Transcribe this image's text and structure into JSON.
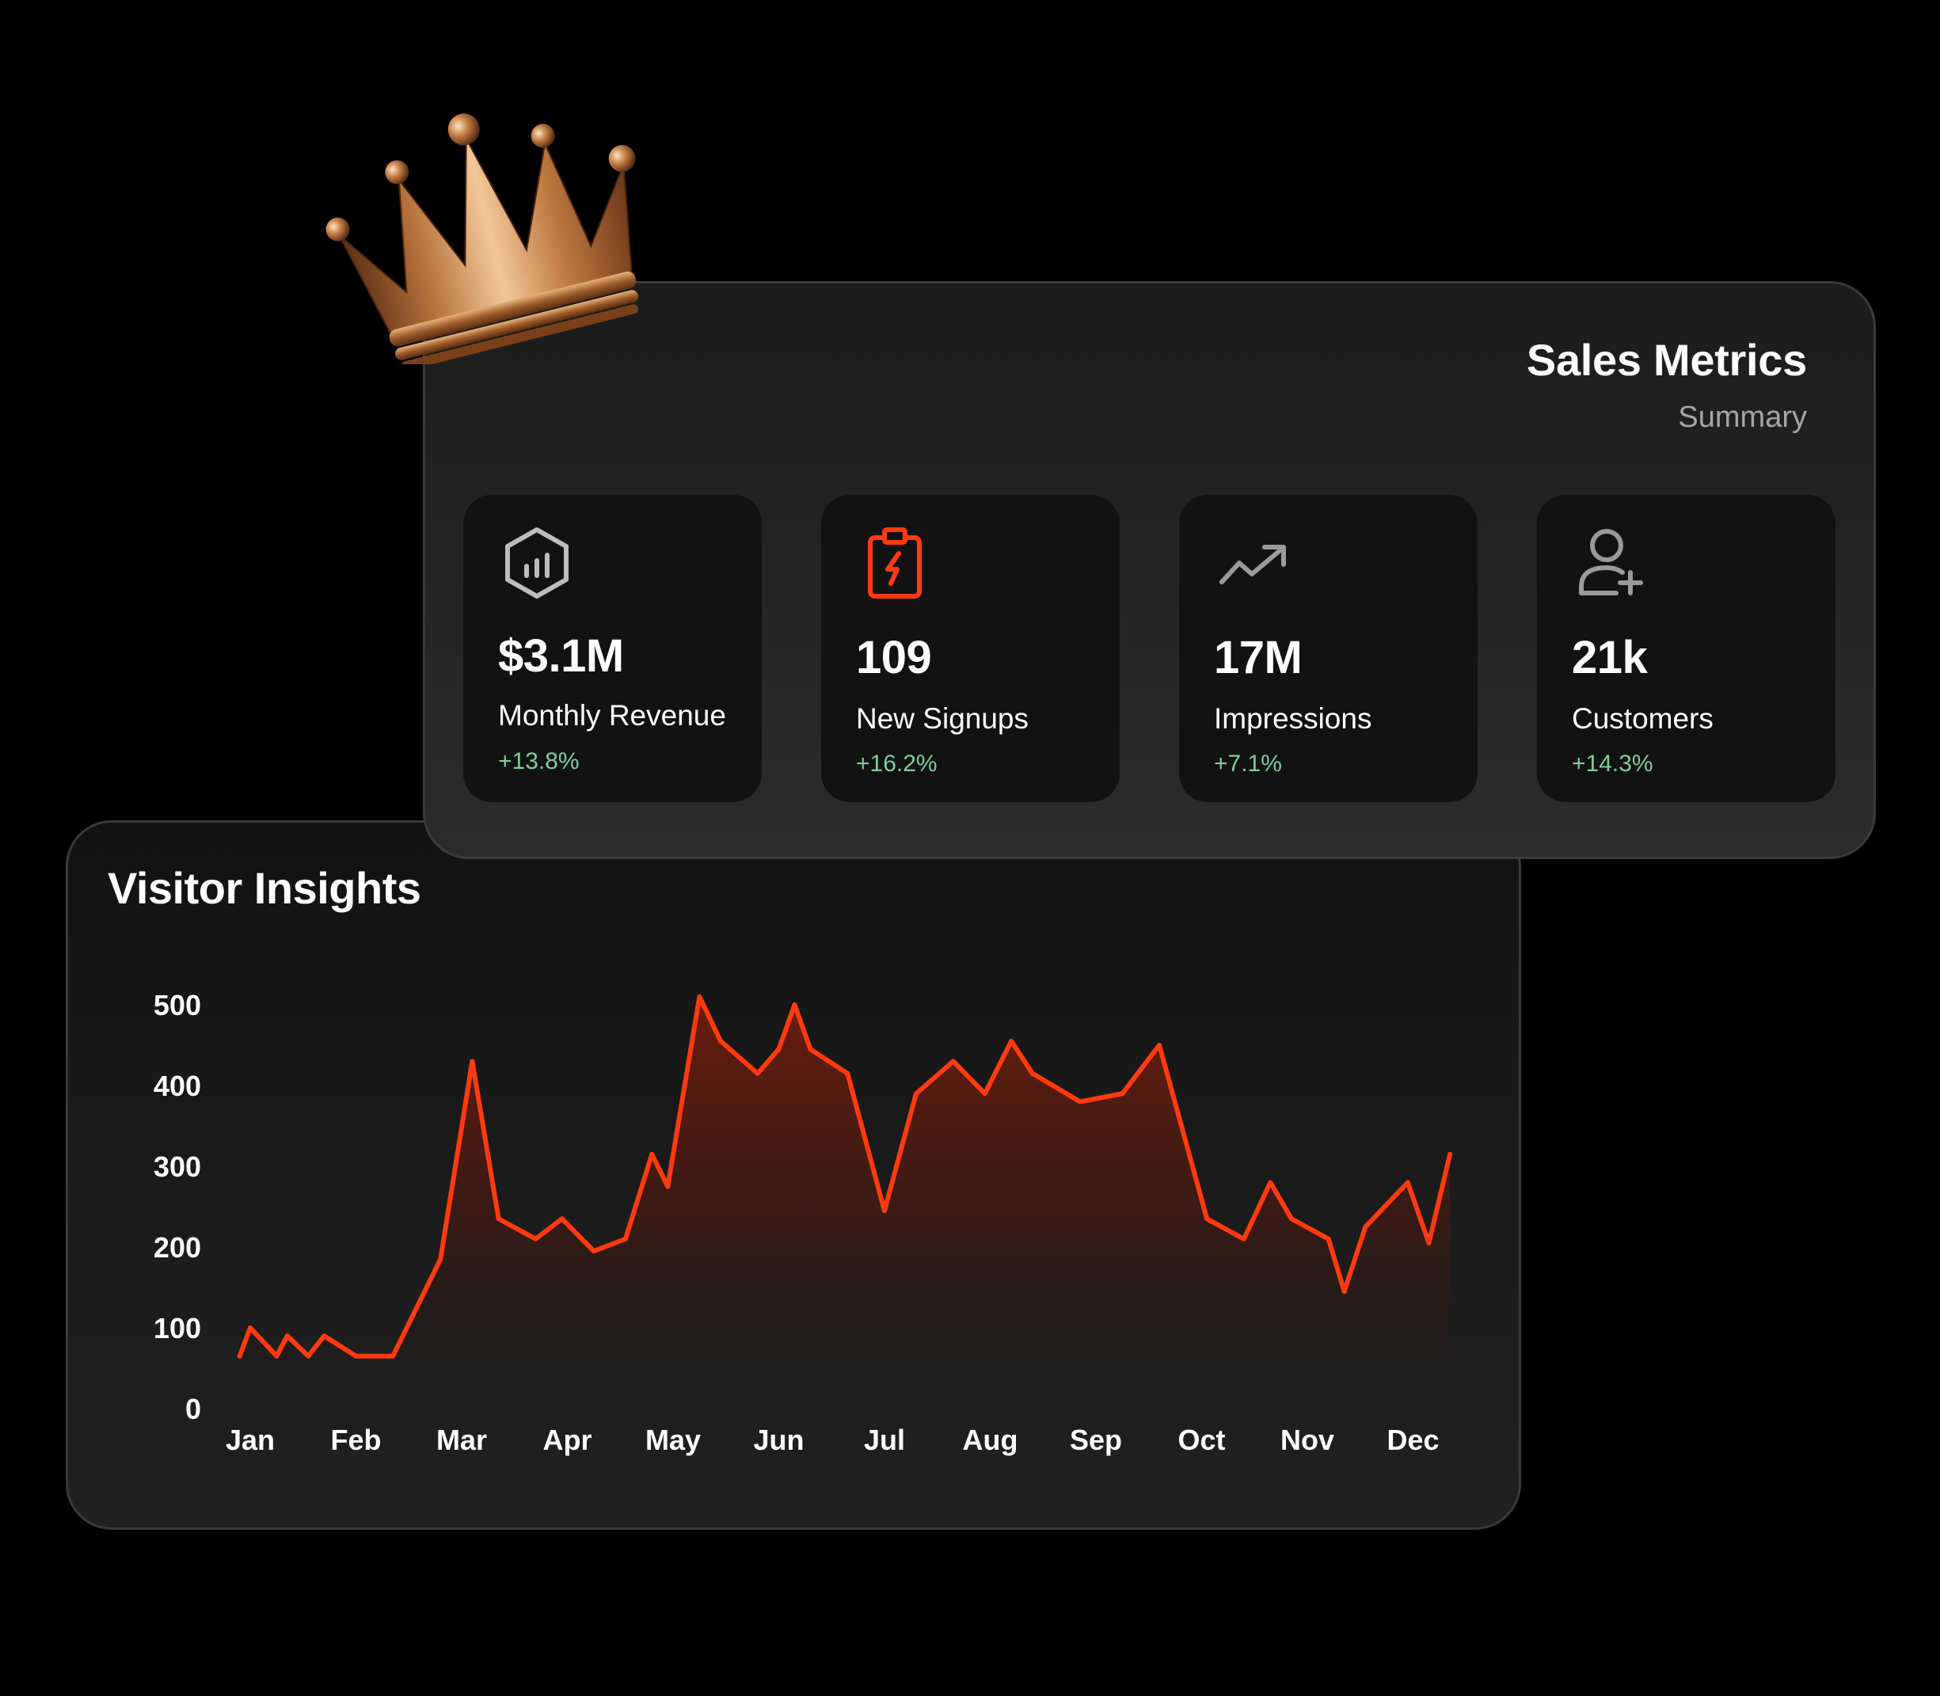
{
  "sales_metrics": {
    "title": "Sales Metrics",
    "subtitle": "Summary",
    "cards": [
      {
        "icon": "hexagon-bar-chart-icon",
        "value": "$3.1M",
        "label": "Monthly Revenue",
        "change": "+13.8%"
      },
      {
        "icon": "clipboard-lightning-icon",
        "value": "109",
        "label": "New Signups",
        "change": "+16.2%"
      },
      {
        "icon": "trending-up-icon",
        "value": "17M",
        "label": "Impressions",
        "change": "+7.1%"
      },
      {
        "icon": "user-plus-icon",
        "value": "21k",
        "label": "Customers",
        "change": "+14.3%"
      }
    ]
  },
  "visitor_insights": {
    "title": "Visitor Insights"
  },
  "colors": {
    "accent": "#ff3a0f",
    "change_positive": "#7ccf9c",
    "crown_gold": "#c98a4b"
  },
  "chart_data": {
    "type": "area",
    "title": "Visitor Insights",
    "xlabel": "",
    "ylabel": "",
    "ylim": [
      0,
      500
    ],
    "yticks": [
      "0",
      "100",
      "200",
      "300",
      "400",
      "500"
    ],
    "xticks": [
      "Jan",
      "Feb",
      "Mar",
      "Apr",
      "May",
      "Jun",
      "Jul",
      "Aug",
      "Sep",
      "Oct",
      "Nov",
      "Dec"
    ],
    "grid": false,
    "legend": "none",
    "series": [
      {
        "color": "#ff3a0f",
        "points": [
          [
            -0.1,
            65
          ],
          [
            0.0,
            100
          ],
          [
            0.25,
            65
          ],
          [
            0.35,
            90
          ],
          [
            0.55,
            65
          ],
          [
            0.7,
            90
          ],
          [
            1.0,
            65
          ],
          [
            1.35,
            65
          ],
          [
            1.8,
            185
          ],
          [
            2.1,
            430
          ],
          [
            2.35,
            235
          ],
          [
            2.7,
            210
          ],
          [
            2.95,
            235
          ],
          [
            3.25,
            195
          ],
          [
            3.55,
            210
          ],
          [
            3.8,
            315
          ],
          [
            3.95,
            275
          ],
          [
            4.25,
            510
          ],
          [
            4.45,
            455
          ],
          [
            4.8,
            415
          ],
          [
            5.0,
            445
          ],
          [
            5.15,
            500
          ],
          [
            5.3,
            445
          ],
          [
            5.65,
            415
          ],
          [
            6.0,
            245
          ],
          [
            6.3,
            390
          ],
          [
            6.65,
            430
          ],
          [
            6.95,
            390
          ],
          [
            7.2,
            455
          ],
          [
            7.4,
            415
          ],
          [
            7.85,
            380
          ],
          [
            8.25,
            390
          ],
          [
            8.6,
            450
          ],
          [
            9.05,
            235
          ],
          [
            9.4,
            210
          ],
          [
            9.65,
            280
          ],
          [
            9.85,
            235
          ],
          [
            10.2,
            210
          ],
          [
            10.35,
            145
          ],
          [
            10.55,
            225
          ],
          [
            10.95,
            280
          ],
          [
            11.15,
            205
          ],
          [
            11.35,
            315
          ]
        ]
      }
    ]
  }
}
